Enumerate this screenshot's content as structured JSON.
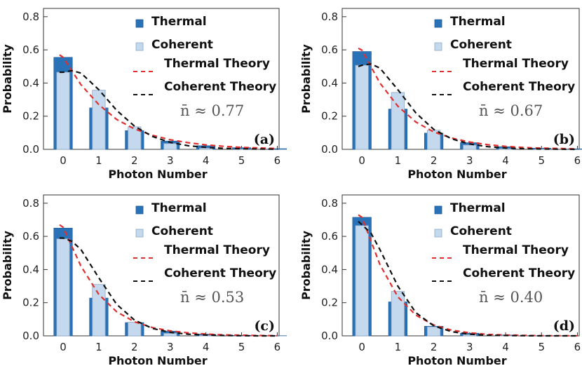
{
  "chart_data": [
    {
      "type": "bar",
      "panel_label": "(a)",
      "nbar_text": "n̄ ≈ 0.77",
      "xlabel": "Photon Number",
      "ylabel": "Probability",
      "xlim": [
        -0.55,
        6.05
      ],
      "ylim": [
        0,
        0.85
      ],
      "x_ticks": [
        0,
        1,
        2,
        3,
        4,
        5,
        6
      ],
      "y_ticks": [
        0.0,
        0.2,
        0.4,
        0.6,
        0.8
      ],
      "legend_placement": "top-right",
      "series": [
        {
          "name": "Thermal",
          "kind": "bar",
          "color": "#2a72b8",
          "x": [
            0,
            1,
            2,
            3,
            4,
            5,
            6
          ],
          "values": [
            0.555,
            0.25,
            0.113,
            0.05,
            0.022,
            0.01,
            0.004
          ]
        },
        {
          "name": "Coherent",
          "kind": "bar",
          "color": "#c4d8ee",
          "x": [
            0,
            1,
            2,
            3,
            4,
            5,
            6
          ],
          "values": [
            0.465,
            0.357,
            0.136,
            0.035,
            0.007,
            0.001,
            0.0
          ]
        },
        {
          "name": "Thermal Theory",
          "kind": "line",
          "color": "#e03030",
          "dash": "7,5",
          "x": [
            -0.1,
            0.0,
            0.5,
            1.0,
            1.5,
            2.0,
            2.5,
            3.0,
            3.5,
            4.0,
            4.5,
            5.0,
            5.5,
            6.0
          ],
          "values": [
            0.57,
            0.555,
            0.39,
            0.27,
            0.18,
            0.123,
            0.085,
            0.058,
            0.04,
            0.027,
            0.018,
            0.012,
            0.008,
            0.005
          ]
        },
        {
          "name": "Coherent Theory",
          "kind": "line",
          "color": "#111111",
          "dash": "7,5",
          "x": [
            -0.1,
            0.0,
            0.25,
            0.5,
            1.0,
            1.5,
            2.0,
            2.5,
            3.0,
            3.5,
            4.0,
            4.5,
            5.0,
            5.5,
            6.0
          ],
          "values": [
            0.465,
            0.465,
            0.475,
            0.46,
            0.36,
            0.235,
            0.14,
            0.078,
            0.042,
            0.022,
            0.012,
            0.006,
            0.003,
            0.002,
            0.001
          ]
        }
      ]
    },
    {
      "type": "bar",
      "panel_label": "(b)",
      "nbar_text": "n̄ ≈ 0.67",
      "xlabel": "Photon Number",
      "ylabel": "Probability",
      "xlim": [
        -0.55,
        6.05
      ],
      "ylim": [
        0,
        0.85
      ],
      "x_ticks": [
        0,
        1,
        2,
        3,
        4,
        5,
        6
      ],
      "y_ticks": [
        0.0,
        0.2,
        0.4,
        0.6,
        0.8
      ],
      "legend_placement": "top-right",
      "series": [
        {
          "name": "Thermal",
          "kind": "bar",
          "color": "#2a72b8",
          "x": [
            0,
            1,
            2,
            3,
            4,
            5,
            6
          ],
          "values": [
            0.59,
            0.243,
            0.098,
            0.04,
            0.016,
            0.007,
            0.003
          ]
        },
        {
          "name": "Coherent",
          "kind": "bar",
          "color": "#c4d8ee",
          "x": [
            0,
            1,
            2,
            3,
            4,
            5,
            6
          ],
          "values": [
            0.507,
            0.343,
            0.115,
            0.026,
            0.004,
            0.001,
            0.0
          ]
        },
        {
          "name": "Thermal Theory",
          "kind": "line",
          "color": "#e03030",
          "dash": "7,5",
          "x": [
            -0.1,
            0.0,
            0.5,
            1.0,
            1.5,
            2.0,
            2.5,
            3.0,
            3.5,
            4.0,
            4.5,
            5.0,
            5.5,
            6.0
          ],
          "values": [
            0.61,
            0.598,
            0.4,
            0.26,
            0.165,
            0.105,
            0.068,
            0.044,
            0.028,
            0.018,
            0.011,
            0.007,
            0.005,
            0.003
          ]
        },
        {
          "name": "Coherent Theory",
          "kind": "line",
          "color": "#111111",
          "dash": "7,5",
          "x": [
            -0.1,
            0.0,
            0.25,
            0.5,
            1.0,
            1.5,
            2.0,
            2.5,
            3.0,
            3.5,
            4.0,
            4.5,
            5.0,
            5.5,
            6.0
          ],
          "values": [
            0.5,
            0.507,
            0.515,
            0.49,
            0.36,
            0.22,
            0.12,
            0.063,
            0.032,
            0.016,
            0.008,
            0.004,
            0.002,
            0.001,
            0.0
          ]
        }
      ]
    },
    {
      "type": "bar",
      "panel_label": "(c)",
      "nbar_text": "n̄ ≈ 0.53",
      "xlabel": "Photon Number",
      "ylabel": "Probability",
      "xlim": [
        -0.55,
        6.05
      ],
      "ylim": [
        0,
        0.85
      ],
      "x_ticks": [
        0,
        1,
        2,
        3,
        4,
        5,
        6
      ],
      "y_ticks": [
        0.0,
        0.2,
        0.4,
        0.6,
        0.8
      ],
      "legend_placement": "top-right",
      "series": [
        {
          "name": "Thermal",
          "kind": "bar",
          "color": "#2a72b8",
          "x": [
            0,
            1,
            2,
            3,
            4,
            5,
            6
          ],
          "values": [
            0.65,
            0.228,
            0.08,
            0.028,
            0.01,
            0.003,
            0.001
          ]
        },
        {
          "name": "Coherent",
          "kind": "bar",
          "color": "#c4d8ee",
          "x": [
            0,
            1,
            2,
            3,
            4,
            5,
            6
          ],
          "values": [
            0.585,
            0.31,
            0.082,
            0.015,
            0.002,
            0.0,
            0.0
          ]
        },
        {
          "name": "Thermal Theory",
          "kind": "line",
          "color": "#e03030",
          "dash": "7,5",
          "x": [
            -0.1,
            0.0,
            0.5,
            1.0,
            1.5,
            2.0,
            2.5,
            3.0,
            3.5,
            4.0,
            4.5,
            5.0,
            5.5,
            6.0
          ],
          "values": [
            0.67,
            0.655,
            0.42,
            0.25,
            0.145,
            0.085,
            0.05,
            0.03,
            0.018,
            0.011,
            0.006,
            0.004,
            0.002,
            0.001
          ]
        },
        {
          "name": "Coherent Theory",
          "kind": "line",
          "color": "#111111",
          "dash": "7,5",
          "x": [
            -0.1,
            0.0,
            0.25,
            0.5,
            1.0,
            1.5,
            2.0,
            2.5,
            3.0,
            3.5,
            4.0,
            4.5,
            5.0,
            5.5,
            6.0
          ],
          "values": [
            0.59,
            0.59,
            0.57,
            0.52,
            0.35,
            0.19,
            0.095,
            0.045,
            0.021,
            0.01,
            0.005,
            0.002,
            0.001,
            0.0,
            0.0
          ]
        }
      ]
    },
    {
      "type": "bar",
      "panel_label": "(d)",
      "nbar_text": "n̄ ≈ 0.40",
      "xlabel": "Photon Number",
      "ylabel": "Probability",
      "xlim": [
        -0.55,
        6.05
      ],
      "ylim": [
        0,
        0.85
      ],
      "x_ticks": [
        0,
        1,
        2,
        3,
        4,
        5,
        6
      ],
      "y_ticks": [
        0.0,
        0.2,
        0.4,
        0.6,
        0.8
      ],
      "legend_placement": "top-right",
      "series": [
        {
          "name": "Thermal",
          "kind": "bar",
          "color": "#2a72b8",
          "x": [
            0,
            1,
            2,
            3,
            4,
            5,
            6
          ],
          "values": [
            0.715,
            0.205,
            0.058,
            0.016,
            0.005,
            0.001,
            0.0
          ]
        },
        {
          "name": "Coherent",
          "kind": "bar",
          "color": "#c4d8ee",
          "x": [
            0,
            1,
            2,
            3,
            4,
            5,
            6
          ],
          "values": [
            0.665,
            0.268,
            0.054,
            0.007,
            0.001,
            0.0,
            0.0
          ]
        },
        {
          "name": "Thermal Theory",
          "kind": "line",
          "color": "#e03030",
          "dash": "7,5",
          "x": [
            -0.1,
            0.0,
            0.5,
            1.0,
            1.5,
            2.0,
            2.5,
            3.0,
            3.5,
            4.0,
            4.5,
            5.0,
            5.5,
            6.0
          ],
          "values": [
            0.73,
            0.715,
            0.43,
            0.235,
            0.125,
            0.065,
            0.034,
            0.018,
            0.009,
            0.005,
            0.003,
            0.001,
            0.001,
            0.0
          ]
        },
        {
          "name": "Coherent Theory",
          "kind": "line",
          "color": "#111111",
          "dash": "7,5",
          "x": [
            -0.1,
            0.0,
            0.25,
            0.5,
            1.0,
            1.5,
            2.0,
            2.5,
            3.0,
            3.5,
            4.0,
            4.5,
            5.0,
            5.5,
            6.0
          ],
          "values": [
            0.69,
            0.67,
            0.62,
            0.52,
            0.3,
            0.14,
            0.06,
            0.025,
            0.01,
            0.004,
            0.002,
            0.001,
            0.0,
            0.0,
            0.0
          ]
        }
      ]
    }
  ]
}
